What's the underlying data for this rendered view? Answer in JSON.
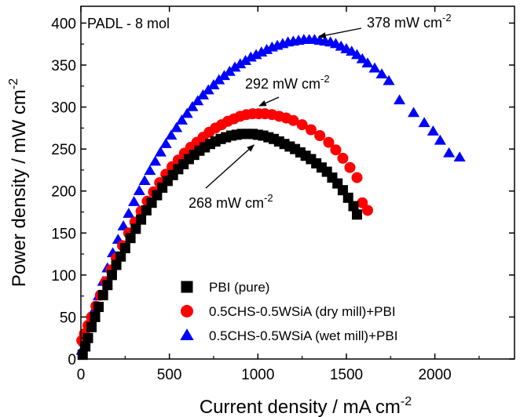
{
  "chart_data": {
    "type": "scatter",
    "panel_label": "PADL - 8 mol",
    "xlabel": "Current density / mA cm",
    "xlabel_sup": "-2",
    "ylabel": "Power density / mW cm",
    "ylabel_sup": "-2",
    "xlim": [
      0,
      2450
    ],
    "ylim": [
      0,
      420
    ],
    "x_ticks": [
      0,
      500,
      1000,
      1500,
      2000
    ],
    "y_ticks": [
      0,
      50,
      100,
      150,
      200,
      250,
      300,
      350,
      400
    ],
    "legend_position": "bottom-right",
    "annotations": [
      {
        "id": "pure",
        "text": "268 mW cm",
        "sup": "-2",
        "point": [
          960,
          268
        ]
      },
      {
        "id": "dry",
        "text": "292 mW cm",
        "sup": "-2",
        "point": [
          990,
          292
        ]
      },
      {
        "id": "wet",
        "text": "378 mW cm",
        "sup": "-2",
        "point": [
          1300,
          380
        ]
      }
    ],
    "series": [
      {
        "name": "PBI (pure)",
        "marker": "square",
        "color": "#000000",
        "x": [
          10,
          25,
          40,
          60,
          80,
          100,
          125,
          150,
          175,
          200,
          225,
          250,
          280,
          310,
          340,
          370,
          400,
          430,
          460,
          490,
          520,
          550,
          580,
          610,
          640,
          670,
          700,
          730,
          760,
          790,
          820,
          850,
          880,
          910,
          940,
          970,
          1000,
          1030,
          1060,
          1090,
          1120,
          1150,
          1180,
          1210,
          1240,
          1270,
          1300,
          1330,
          1360,
          1390,
          1420,
          1450,
          1480,
          1510,
          1540,
          1560
        ],
        "y": [
          5,
          15,
          25,
          38,
          50,
          62,
          76,
          88,
          100,
          112,
          122,
          132,
          144,
          155,
          166,
          177,
          186,
          195,
          204,
          212,
          219,
          226,
          232,
          238,
          243,
          248,
          252,
          256,
          259,
          262,
          264,
          266,
          267,
          268,
          268,
          268,
          267,
          266,
          264,
          262,
          259,
          256,
          253,
          250,
          246,
          242,
          238,
          233,
          228,
          223,
          216,
          209,
          201,
          192,
          182,
          172
        ]
      },
      {
        "name": "0.5CHS-0.5WSiA (dry mill)+PBI",
        "marker": "circle",
        "color": "#ff0000",
        "x": [
          5,
          20,
          40,
          60,
          85,
          110,
          140,
          170,
          200,
          235,
          270,
          305,
          340,
          375,
          410,
          445,
          480,
          515,
          550,
          585,
          620,
          655,
          690,
          725,
          760,
          795,
          830,
          865,
          900,
          935,
          970,
          1005,
          1040,
          1080,
          1120,
          1160,
          1200,
          1250,
          1300,
          1350,
          1400,
          1440,
          1480,
          1520,
          1560,
          1590,
          1620
        ],
        "y": [
          22,
          30,
          40,
          50,
          63,
          76,
          92,
          106,
          120,
          135,
          150,
          163,
          176,
          188,
          199,
          210,
          220,
          229,
          237,
          245,
          252,
          258,
          264,
          270,
          275,
          279,
          283,
          286,
          289,
          291,
          292,
          292,
          292,
          291,
          289,
          287,
          284,
          279,
          273,
          266,
          258,
          249,
          239,
          228,
          216,
          186,
          177
        ]
      },
      {
        "name": "0.5CHS-0.5WSiA (wet mill)+PBI",
        "marker": "triangle",
        "color": "#0000ff",
        "x": [
          5,
          20,
          35,
          55,
          75,
          100,
          125,
          150,
          180,
          210,
          240,
          270,
          300,
          330,
          360,
          390,
          420,
          450,
          480,
          510,
          540,
          570,
          600,
          630,
          660,
          690,
          720,
          750,
          780,
          810,
          840,
          870,
          900,
          930,
          960,
          990,
          1020,
          1050,
          1080,
          1110,
          1140,
          1170,
          1200,
          1230,
          1260,
          1290,
          1320,
          1350,
          1380,
          1410,
          1440,
          1470,
          1500,
          1530,
          1560,
          1590,
          1620,
          1660,
          1700,
          1740,
          1800,
          1880,
          1940,
          1990,
          2030,
          2080,
          2140
        ],
        "y": [
          10,
          20,
          30,
          45,
          58,
          75,
          92,
          108,
          126,
          142,
          158,
          173,
          187,
          200,
          212,
          224,
          235,
          246,
          256,
          266,
          275,
          284,
          292,
          300,
          307,
          314,
          320,
          326,
          332,
          337,
          342,
          347,
          351,
          355,
          359,
          362,
          365,
          368,
          371,
          373,
          375,
          377,
          378,
          379,
          380,
          380,
          380,
          379,
          378,
          377,
          375,
          372,
          369,
          366,
          362,
          357,
          352,
          346,
          339,
          331,
          308,
          293,
          281,
          271,
          260,
          245,
          240
        ]
      }
    ]
  }
}
